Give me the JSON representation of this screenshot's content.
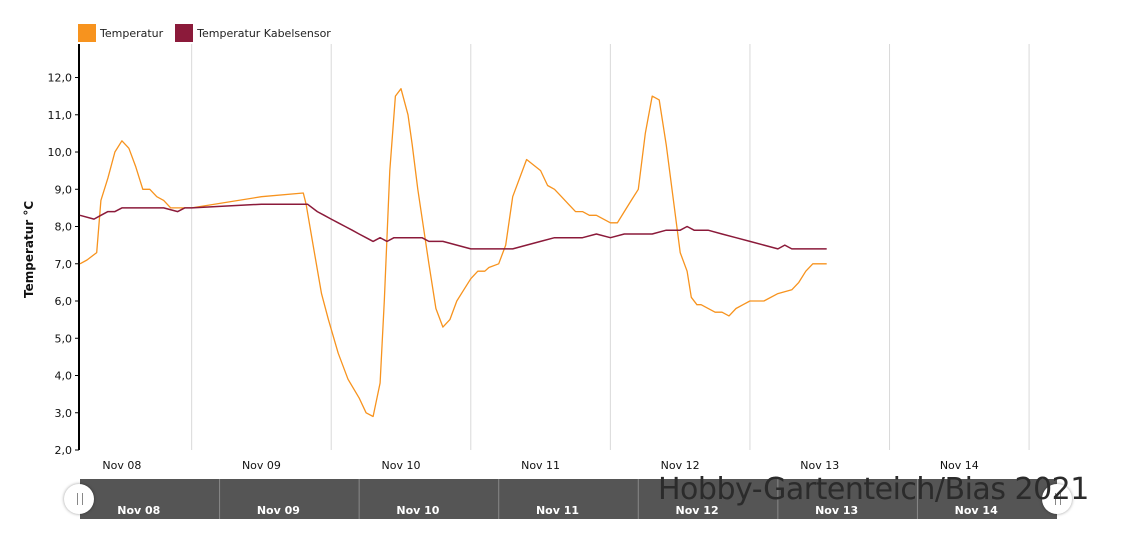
{
  "legend": [
    {
      "label": "Temperatur",
      "color": "#f7931e"
    },
    {
      "label": "Temperatur Kabelsensor",
      "color": "#8b1a3a"
    }
  ],
  "watermark": "Hobby-Gartenteich/Bias 2021",
  "navigator": {
    "labels": [
      "Nov 08",
      "Nov 09",
      "Nov 10",
      "Nov 11",
      "Nov 12",
      "Nov 13",
      "Nov 14"
    ],
    "handle_icon": "drag-handle-icon"
  },
  "chart_data": {
    "type": "line",
    "ylabel": "Temperatur °C",
    "xlabel": "",
    "ylim": [
      2.0,
      12.9
    ],
    "yticks": [
      "2,0",
      "3,0",
      "4,0",
      "5,0",
      "6,0",
      "7,0",
      "8,0",
      "9,0",
      "10,0",
      "11,0",
      "12,0"
    ],
    "xlim": [
      7.7,
      14.7
    ],
    "x_unit": "day of November",
    "xticks": [
      {
        "value": 8,
        "label": "Nov 08"
      },
      {
        "value": 9,
        "label": "Nov 09"
      },
      {
        "value": 10,
        "label": "Nov 10"
      },
      {
        "value": 11,
        "label": "Nov 11"
      },
      {
        "value": 12,
        "label": "Nov 12"
      },
      {
        "value": 13,
        "label": "Nov 13"
      },
      {
        "value": 14,
        "label": "Nov 14"
      }
    ],
    "grid": true,
    "legend_position": "top-left",
    "series": [
      {
        "name": "Temperatur",
        "color": "#f7931e",
        "x": [
          7.7,
          7.75,
          7.82,
          7.85,
          7.9,
          7.95,
          8.0,
          8.05,
          8.1,
          8.15,
          8.2,
          8.25,
          8.3,
          8.35,
          8.4,
          8.45,
          8.5,
          9.0,
          9.3,
          9.32,
          9.37,
          9.43,
          9.48,
          9.55,
          9.62,
          9.7,
          9.75,
          9.8,
          9.85,
          9.88,
          9.92,
          9.96,
          10.0,
          10.05,
          10.08,
          10.12,
          10.2,
          10.25,
          10.3,
          10.35,
          10.4,
          10.45,
          10.5,
          10.55,
          10.6,
          10.63,
          10.7,
          10.75,
          10.8,
          10.9,
          11.0,
          11.05,
          11.1,
          11.15,
          11.2,
          11.25,
          11.3,
          11.35,
          11.4,
          11.5,
          11.55,
          11.6,
          11.65,
          11.7,
          11.75,
          11.8,
          11.85,
          11.9,
          12.0,
          12.05,
          12.08,
          12.12,
          12.15,
          12.25,
          12.3,
          12.35,
          12.4,
          12.45,
          12.5,
          12.55,
          12.6,
          12.7,
          12.8,
          12.85,
          12.9,
          12.95,
          13.0,
          13.05
        ],
        "values": [
          7.0,
          7.1,
          7.3,
          8.7,
          9.3,
          10.0,
          10.3,
          10.1,
          9.6,
          9.0,
          9.0,
          8.8,
          8.7,
          8.5,
          8.5,
          8.5,
          8.5,
          8.8,
          8.9,
          8.6,
          7.5,
          6.2,
          5.5,
          4.6,
          3.9,
          3.4,
          3.0,
          2.9,
          3.8,
          6.0,
          9.5,
          11.5,
          11.7,
          11.0,
          10.2,
          9.0,
          7.0,
          5.8,
          5.3,
          5.5,
          6.0,
          6.3,
          6.6,
          6.8,
          6.8,
          6.9,
          7.0,
          7.5,
          8.8,
          9.8,
          9.5,
          9.1,
          9.0,
          8.8,
          8.6,
          8.4,
          8.4,
          8.3,
          8.3,
          8.1,
          8.1,
          8.4,
          8.7,
          9.0,
          10.5,
          11.5,
          11.4,
          10.2,
          7.3,
          6.8,
          6.1,
          5.9,
          5.9,
          5.7,
          5.7,
          5.6,
          5.8,
          5.9,
          6.0,
          6.0,
          6.0,
          6.2,
          6.3,
          6.5,
          6.8,
          7.0,
          7.0,
          7.0
        ]
      },
      {
        "name": "Temperatur Kabelsensor",
        "color": "#8b1a3a",
        "x": [
          7.7,
          7.8,
          7.85,
          7.9,
          7.95,
          8.0,
          8.05,
          8.1,
          8.2,
          8.3,
          8.4,
          8.45,
          8.5,
          9.0,
          9.33,
          9.4,
          9.45,
          9.5,
          9.55,
          9.6,
          9.65,
          9.7,
          9.75,
          9.8,
          9.85,
          9.9,
          9.95,
          10.0,
          10.05,
          10.1,
          10.15,
          10.2,
          10.3,
          10.4,
          10.5,
          10.6,
          10.7,
          10.8,
          10.9,
          11.0,
          11.1,
          11.2,
          11.3,
          11.4,
          11.5,
          11.6,
          11.7,
          11.8,
          11.9,
          12.0,
          12.05,
          12.1,
          12.2,
          12.3,
          12.4,
          12.5,
          12.6,
          12.7,
          12.75,
          12.8,
          12.85,
          12.9,
          12.95,
          13.0,
          13.05
        ],
        "values": [
          8.3,
          8.2,
          8.3,
          8.4,
          8.4,
          8.5,
          8.5,
          8.5,
          8.5,
          8.5,
          8.4,
          8.5,
          8.5,
          8.6,
          8.6,
          8.4,
          8.3,
          8.2,
          8.1,
          8.0,
          7.9,
          7.8,
          7.7,
          7.6,
          7.7,
          7.6,
          7.7,
          7.7,
          7.7,
          7.7,
          7.7,
          7.6,
          7.6,
          7.5,
          7.4,
          7.4,
          7.4,
          7.4,
          7.5,
          7.6,
          7.7,
          7.7,
          7.7,
          7.8,
          7.7,
          7.8,
          7.8,
          7.8,
          7.9,
          7.9,
          8.0,
          7.9,
          7.9,
          7.8,
          7.7,
          7.6,
          7.5,
          7.4,
          7.5,
          7.4,
          7.4,
          7.4,
          7.4,
          7.4,
          7.4
        ]
      }
    ]
  }
}
